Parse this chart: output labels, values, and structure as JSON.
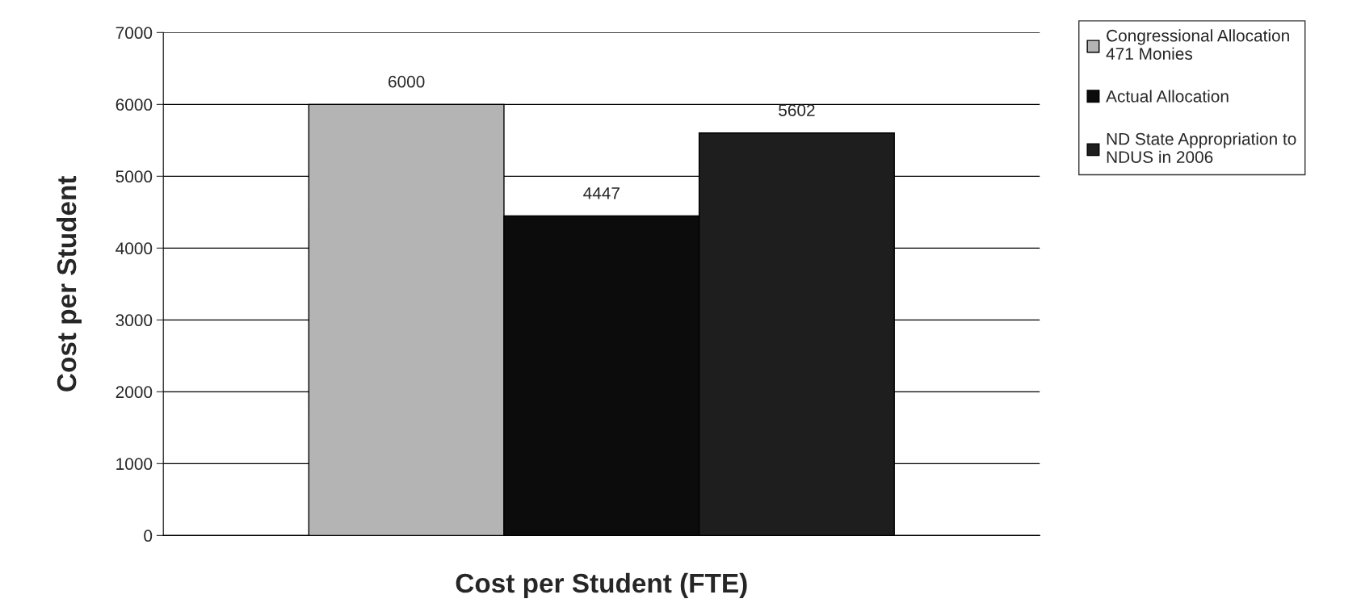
{
  "chart_data": {
    "type": "bar",
    "xlabel": "Cost per Student (FTE)",
    "ylabel": "Cost per Student",
    "categories": [
      null
    ],
    "series": [
      {
        "name": "Congressional Allocation\n471 Monies",
        "color": "#b4b4b4",
        "values": [
          6000
        ]
      },
      {
        "name": "Actual Allocation",
        "color": "#0c0c0c",
        "values": [
          4447
        ]
      },
      {
        "name": "ND State Appropriation to\nNDUS in 2006",
        "color": "#1e1e1e",
        "values": [
          5602
        ]
      }
    ],
    "ylim": [
      0,
      7000
    ],
    "yticks": [
      0,
      1000,
      2000,
      3000,
      4000,
      5000,
      6000,
      7000
    ],
    "grid": "y",
    "legend": "top right",
    "data_labels": true
  }
}
